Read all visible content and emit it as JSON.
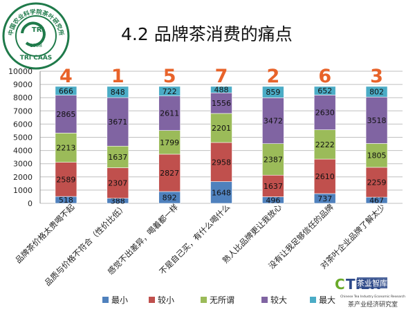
{
  "slide": {
    "title": "4.2 品牌茶消费的痛点"
  },
  "logo": {
    "text_top": "中国农业科学院茶叶研究所",
    "text_mid": "TRI",
    "text_year": "1958",
    "text_bottom": "TRI CAAS"
  },
  "brand": {
    "name_top": "茶业智库",
    "name_en": "Chinese Tea Industry Economic Research",
    "name_cn": "茶产业经济研究室"
  },
  "colors": {
    "最小": "#4f81bd",
    "较小": "#c0504d",
    "无所谓": "#9bbb59",
    "较大": "#8064a2",
    "最大": "#4bacc6",
    "rank": "#e8632a"
  },
  "chart_data": {
    "type": "bar",
    "stacked": true,
    "ylim": [
      0,
      10000
    ],
    "yticks": [
      0,
      1000,
      2000,
      3000,
      4000,
      5000,
      6000,
      7000,
      8000,
      9000,
      10000
    ],
    "grid": true,
    "legend_position": "bottom",
    "categories": [
      "品牌茶价格太贵喝不起",
      "品质与价格不符合（性价比低）",
      "感觉不出差异，喝着都一样",
      "不是自己买，有什么喝什么",
      "熟人比品牌更让我放心",
      "没有让我足够信任的品牌",
      "对茶叶企业品牌了解太少"
    ],
    "rank_labels": [
      "4",
      "1",
      "5",
      "7",
      "2",
      "6",
      "3"
    ],
    "series": [
      {
        "name": "最小",
        "values": [
          518,
          388,
          892,
          1648,
          496,
          737,
          467
        ]
      },
      {
        "name": "较小",
        "values": [
          2589,
          2307,
          2827,
          2958,
          1637,
          2610,
          2259
        ]
      },
      {
        "name": "无所谓",
        "values": [
          2213,
          1637,
          1799,
          2201,
          2387,
          2222,
          1805
        ]
      },
      {
        "name": "较大",
        "values": [
          2865,
          3671,
          2611,
          1556,
          3472,
          2630,
          3518
        ]
      },
      {
        "name": "最大",
        "values": [
          666,
          848,
          722,
          488,
          859,
          652,
          802
        ]
      }
    ]
  }
}
